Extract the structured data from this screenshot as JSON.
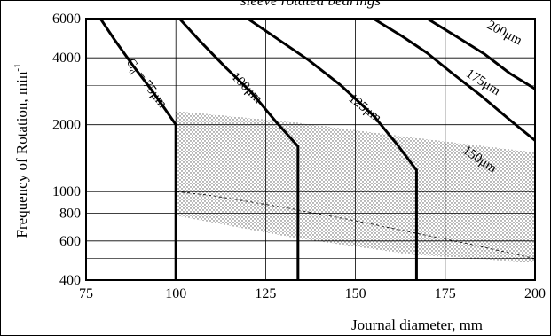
{
  "chart_data": {
    "type": "line",
    "title": "sleeve rotated bearings",
    "xlabel": "Journal diameter, mm",
    "ylabel": "Frequency of Rotation, min",
    "ylabel_superscript": "-1",
    "x_scale": "linear",
    "y_scale": "log",
    "xlim": [
      75,
      200
    ],
    "ylim": [
      400,
      6000
    ],
    "x_ticks": [
      75,
      100,
      125,
      150,
      175,
      200
    ],
    "y_ticks": [
      400,
      600,
      800,
      1000,
      2000,
      4000,
      6000
    ],
    "grid": true,
    "series": [
      {
        "name": "C_d = 75μm",
        "label_main": "C",
        "label_sub": "d",
        "label_rest": " = 75μm",
        "points": [
          [
            79,
            6000
          ],
          [
            83,
            4800
          ],
          [
            88,
            3700
          ],
          [
            93,
            2900
          ],
          [
            97,
            2350
          ],
          [
            100,
            2000
          ],
          [
            100,
            1000
          ],
          [
            100,
            400
          ]
        ]
      },
      {
        "name": "100μm",
        "points": [
          [
            101,
            6000
          ],
          [
            107,
            4700
          ],
          [
            114,
            3600
          ],
          [
            121,
            2800
          ],
          [
            128,
            2050
          ],
          [
            134,
            1600
          ],
          [
            134,
            1000
          ],
          [
            134,
            400
          ]
        ]
      },
      {
        "name": "125μm",
        "points": [
          [
            120,
            6000
          ],
          [
            128,
            4900
          ],
          [
            137,
            3900
          ],
          [
            146,
            3000
          ],
          [
            155,
            2200
          ],
          [
            162,
            1600
          ],
          [
            167,
            1250
          ],
          [
            167,
            1000
          ],
          [
            167,
            400
          ]
        ]
      },
      {
        "name": "150μm",
        "points": [
          [
            155,
            6000
          ],
          [
            163,
            5000
          ],
          [
            170,
            4200
          ],
          [
            177,
            3400
          ],
          [
            185,
            2700
          ],
          [
            193,
            2100
          ],
          [
            200,
            1700
          ]
        ]
      },
      {
        "name": "175μm",
        "points": [
          [
            170,
            6000
          ],
          [
            178,
            5000
          ],
          [
            186,
            4150
          ],
          [
            193,
            3400
          ],
          [
            200,
            2900
          ]
        ]
      }
    ],
    "dashed_series": [
      {
        "name": "200μm",
        "points": [
          [
            200,
            500
          ],
          [
            182,
            580
          ],
          [
            165,
            660
          ],
          [
            150,
            740
          ],
          [
            130,
            850
          ],
          [
            110,
            960
          ],
          [
            100,
            1000
          ]
        ]
      }
    ],
    "label_values": [
      {
        "key": "C_d = 75μm",
        "x": 91,
        "y": 3000,
        "angle": -53
      },
      {
        "key": "100μm",
        "x": 119,
        "y": 2850,
        "angle": -45
      },
      {
        "key": "125μm",
        "x": 152,
        "y": 2300,
        "angle": -38
      },
      {
        "key": "150μm",
        "x": 184,
        "y": 1350,
        "angle": -34
      },
      {
        "key": "175μm",
        "x": 185,
        "y": 3000,
        "angle": -32
      },
      {
        "key": "200μm",
        "x": 191,
        "y": 5000,
        "angle": -28
      }
    ],
    "shaded_region": [
      [
        100,
        2300
      ],
      [
        133,
        2050
      ],
      [
        166,
        1750
      ],
      [
        200,
        1500
      ],
      [
        200,
        480
      ],
      [
        166,
        520
      ],
      [
        133,
        620
      ],
      [
        100,
        780
      ]
    ]
  }
}
